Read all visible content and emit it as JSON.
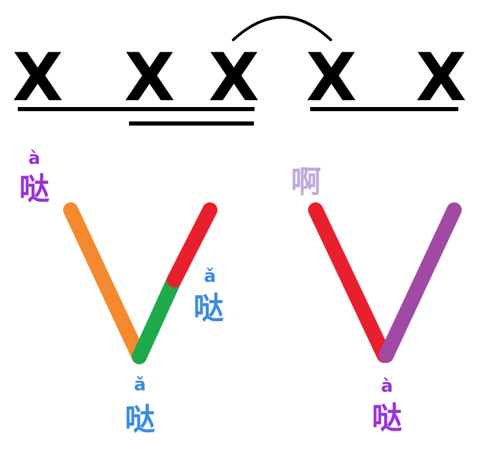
{
  "colors": {
    "ink": "#000000",
    "purple": "#9b30d9",
    "blue": "#3a8be0",
    "lavender": "#c0a8e0",
    "orange": "#f5892e",
    "green": "#1eaa4a",
    "red": "#e8202e",
    "violet": "#a04aa6"
  },
  "rhythm": {
    "marks": [
      "X",
      "X",
      "X",
      "X",
      "X"
    ]
  },
  "left_tone": {
    "start_pinyin": "à",
    "start_hanzi": "哒",
    "mid_pinyin": "ǎ",
    "mid_hanzi": "哒",
    "bottom_pinyin": "ǎ",
    "bottom_hanzi": "哒"
  },
  "right_tone": {
    "start_hanzi": "啊",
    "bottom_pinyin": "à",
    "bottom_hanzi": "哒"
  }
}
